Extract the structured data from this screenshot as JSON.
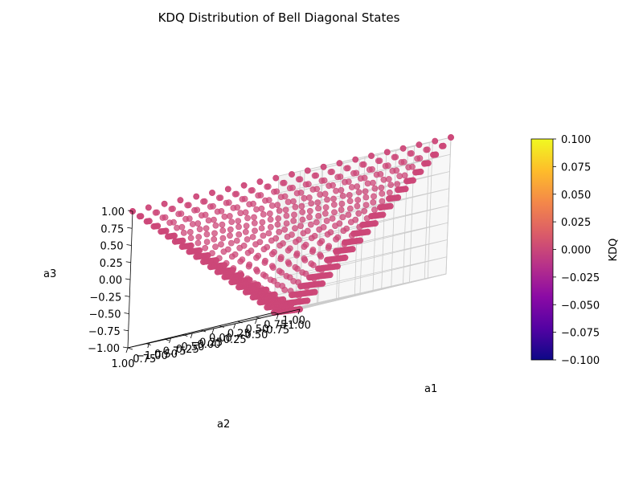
{
  "chart_data": {
    "type": "scatter",
    "title": "KDQ Distribution of Bell Diagonal States",
    "xlabel": "a1",
    "ylabel": "a2",
    "zlabel": "a3",
    "xlim": [
      -1.0,
      1.0
    ],
    "ylim": [
      -1.0,
      1.0
    ],
    "zlim": [
      -1.0,
      1.0
    ],
    "x_ticks": [
      "−1.00",
      "−0.75",
      "−0.50",
      "−0.25",
      "0.00",
      "0.25",
      "0.50",
      "0.75",
      "1.00"
    ],
    "y_ticks": [
      "1.00",
      "0.75",
      "0.50",
      "0.25",
      "0.00",
      "−0.25",
      "−0.50",
      "−0.75",
      "−1.00"
    ],
    "z_ticks": [
      "−1.00",
      "−0.75",
      "−0.50",
      "−0.25",
      "0.00",
      "0.25",
      "0.50",
      "0.75",
      "1.00"
    ],
    "vertices": [
      {
        "a1": -1,
        "a2": -1,
        "a3": -1,
        "kdq": 0.0
      },
      {
        "a1": -1,
        "a2": 1,
        "a3": 1,
        "kdq": 0.0
      },
      {
        "a1": 1,
        "a2": -1,
        "a3": 1,
        "kdq": 0.0
      },
      {
        "a1": 1,
        "a2": 1,
        "a3": -1,
        "kdq": 0.0
      }
    ],
    "grid_steps": 20,
    "kdq_value_all_points": 0.0,
    "point_color": "#cc4778",
    "colorbar": {
      "label": "KDQ",
      "range": [
        -0.1,
        0.1
      ],
      "ticks": [
        "0.100",
        "0.075",
        "0.050",
        "0.025",
        "0.000",
        "−0.025",
        "−0.050",
        "−0.075",
        "−0.100"
      ],
      "colormap": "plasma",
      "colormap_stops": [
        "#0d0887",
        "#5302a3",
        "#8b0aa5",
        "#b83289",
        "#db5c68",
        "#f48849",
        "#febd2a",
        "#f0f921"
      ]
    },
    "grid": true,
    "pane_color": "#f2f2f2"
  }
}
